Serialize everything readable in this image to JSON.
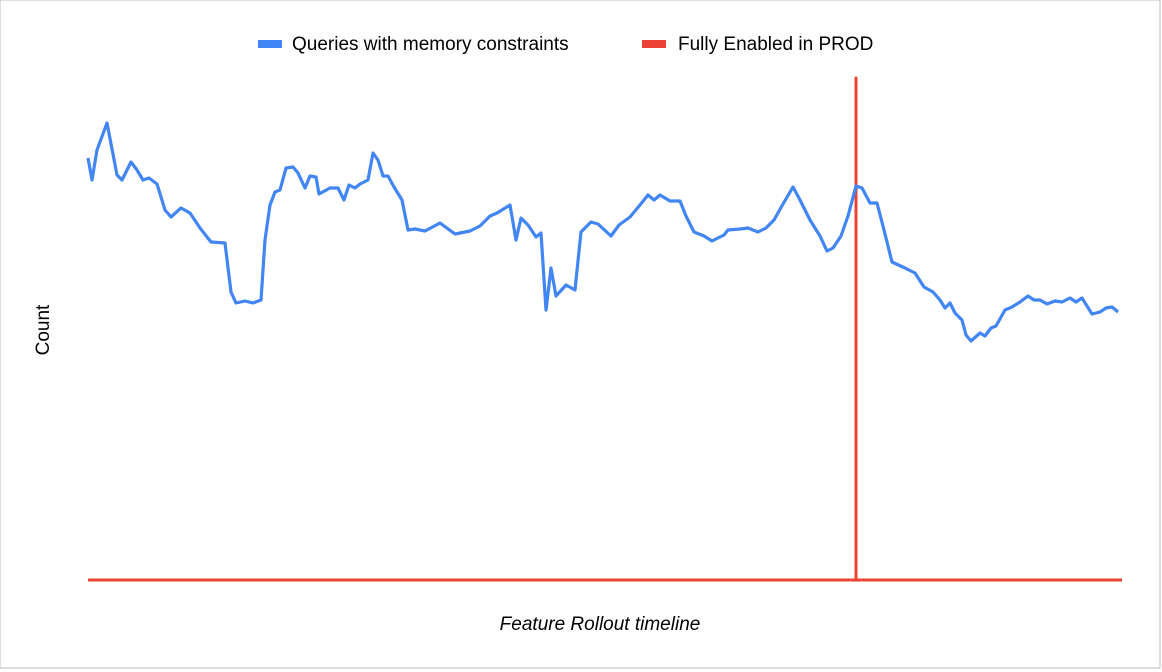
{
  "chart_data": {
    "type": "line",
    "x_label": "Feature Rollout timeline",
    "y_label": "Count",
    "xlim": [
      0,
      1034
    ],
    "ylim": [
      0,
      102
    ],
    "series": [
      {
        "name": "Queries with memory constraints",
        "color": "#4285f4",
        "x": [
          0,
          4,
          9,
          19,
          29,
          34,
          43,
          49,
          55,
          61,
          69,
          77,
          83,
          93,
          102,
          112,
          123,
          137,
          143,
          148,
          157,
          165,
          173,
          177,
          182,
          187,
          192,
          198,
          205,
          210,
          217,
          222,
          228,
          231,
          242,
          250,
          256,
          261,
          267,
          272,
          280,
          285,
          290,
          295,
          300,
          306,
          314,
          320,
          327,
          337,
          352,
          367,
          382,
          392,
          402,
          409,
          422,
          428,
          433,
          440,
          448,
          453,
          458,
          463,
          468,
          478,
          487,
          493,
          503,
          510,
          523,
          531,
          542,
          552,
          560,
          566,
          572,
          582,
          592,
          598,
          606,
          616,
          624,
          636,
          640,
          652,
          660,
          670,
          678,
          686,
          695,
          705,
          712,
          722,
          732,
          739,
          745,
          753,
          760,
          768,
          774,
          782,
          789,
          796,
          804,
          817,
          827,
          836,
          845,
          852,
          857,
          862,
          867,
          874,
          878,
          883,
          892,
          897,
          903,
          908,
          917,
          924,
          932,
          940,
          946,
          952,
          959,
          967,
          974,
          982,
          988,
          994,
          999,
          1004,
          1012,
          1018,
          1024,
          1030
        ],
        "values": [
          84.4,
          80,
          86,
          91.4,
          81,
          80,
          83.6,
          82,
          80,
          80.4,
          79.2,
          74,
          72.6,
          74.4,
          73.4,
          70.4,
          67.6,
          67.4,
          57.6,
          55.4,
          55.8,
          55.4,
          56,
          68,
          75,
          77.6,
          78,
          82.4,
          82.6,
          81.4,
          78.4,
          80.8,
          80.6,
          77.2,
          78.4,
          78.4,
          76,
          79,
          78.4,
          79.2,
          80,
          85.4,
          84,
          80.8,
          80.8,
          78.6,
          76,
          70,
          70.2,
          69.8,
          71.4,
          69.2,
          69.8,
          70.8,
          72.8,
          73.4,
          75,
          68,
          72.4,
          71,
          68.6,
          69.4,
          54,
          62.4,
          56.8,
          59,
          58,
          69.6,
          71.6,
          71.2,
          68.8,
          71,
          72.6,
          75,
          77,
          76,
          77,
          75.8,
          75.8,
          72.8,
          69.6,
          68.8,
          67.8,
          69,
          70,
          70.2,
          70.4,
          69.6,
          70.4,
          72,
          75.2,
          78.6,
          76,
          72,
          68.8,
          65.8,
          66.4,
          68.8,
          72.8,
          78.8,
          78.4,
          75.4,
          75.4,
          70,
          63.6,
          62.4,
          61.4,
          58.6,
          57.6,
          56,
          54.4,
          55.4,
          53.4,
          52,
          49,
          47.8,
          49.4,
          48.8,
          50.4,
          50.8,
          54,
          54.6,
          55.6,
          56.8,
          56,
          56,
          55.2,
          55.8,
          55.6,
          56.4,
          55.6,
          56.4,
          54.8,
          53.2,
          53.6,
          54.4,
          54.6,
          53.6
        ]
      },
      {
        "name": "Fully Enabled in PROD",
        "color": "#ea4335",
        "x": [
          0,
          768,
          768,
          768,
          1034
        ],
        "values": [
          0,
          0,
          100.4,
          0,
          0
        ]
      }
    ]
  }
}
